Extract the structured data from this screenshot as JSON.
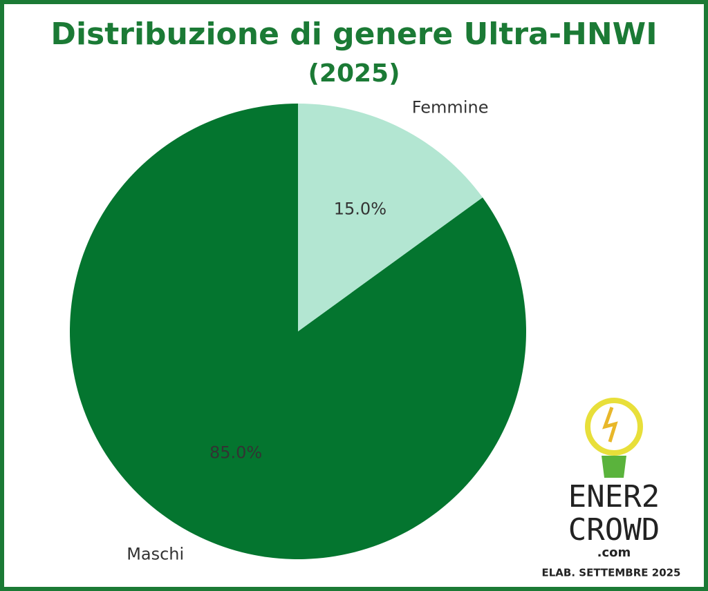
{
  "chart_data": {
    "type": "pie",
    "title": "Distribuzione di genere Ultra-HNWI",
    "subtitle": "(2025)",
    "categories": [
      "Maschi",
      "Femmine"
    ],
    "values": [
      85,
      15
    ],
    "value_labels": [
      "85.0%",
      "15.0%"
    ],
    "colors": [
      "#04752f",
      "#b3e6d2"
    ],
    "start_angle": 90,
    "counterclock": true
  },
  "logo": {
    "line1": "ENER2",
    "line2": "CROWD",
    "line3": ".com"
  },
  "footer": "ELAB. SETTEMBRE 2025"
}
